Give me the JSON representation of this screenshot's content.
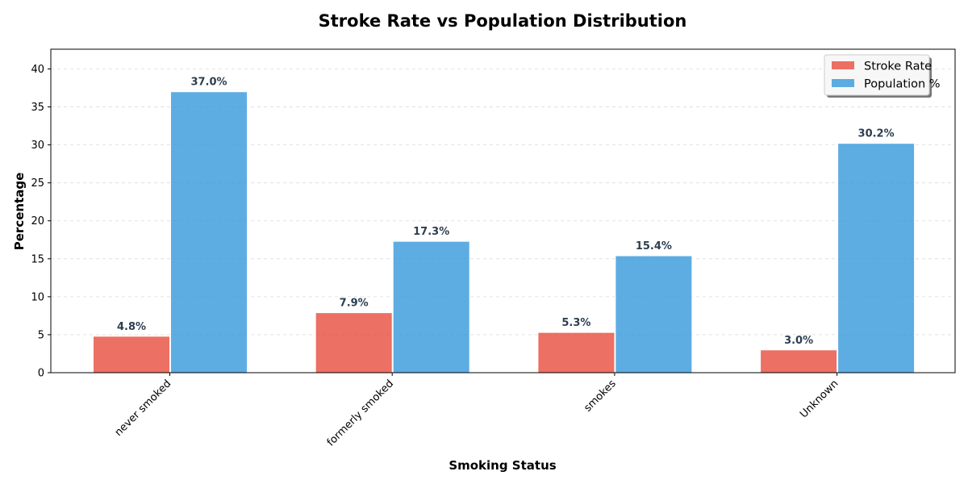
{
  "chart_data": {
    "type": "bar",
    "title": "Stroke Rate vs Population Distribution",
    "xlabel": "Smoking Status",
    "ylabel": "Percentage",
    "categories": [
      "never smoked",
      "formerly smoked",
      "smokes",
      "Unknown"
    ],
    "series": [
      {
        "name": "Stroke Rate",
        "values": [
          4.8,
          7.9,
          5.3,
          3.0
        ],
        "color": "#e74c3c"
      },
      {
        "name": "Population %",
        "values": [
          37.0,
          17.3,
          15.4,
          30.2
        ],
        "color": "#3498db"
      }
    ],
    "data_labels": [
      [
        "4.8%",
        "7.9%",
        "5.3%",
        "3.0%"
      ],
      [
        "37.0%",
        "17.3%",
        "15.4%",
        "30.2%"
      ]
    ],
    "ylim": [
      0,
      42.6
    ],
    "yticks": [
      0,
      5,
      10,
      15,
      20,
      25,
      30,
      35,
      40
    ],
    "ytick_labels": [
      "0",
      "5",
      "10",
      "15",
      "20",
      "25",
      "30",
      "35",
      "40"
    ],
    "grid": "y",
    "legend_position": "top-right"
  }
}
